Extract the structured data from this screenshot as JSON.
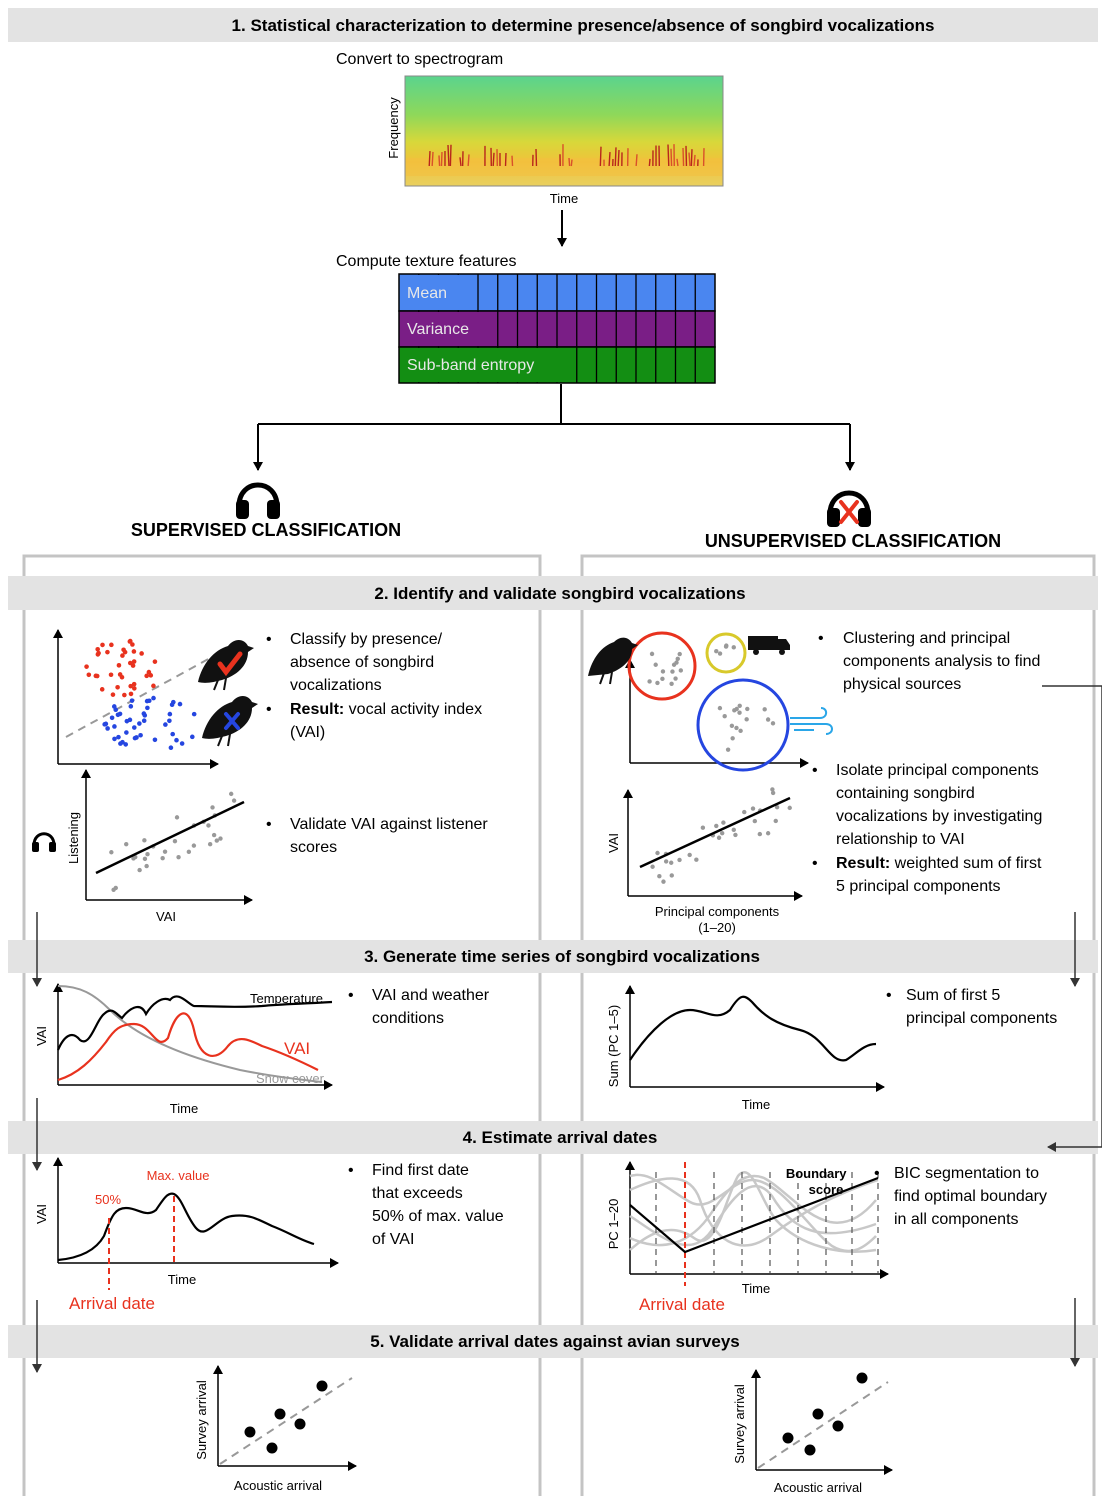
{
  "bands": {
    "b1": "1. Statistical characterization to determine presence/absence of songbird vocalizations",
    "b2": "2. Identify and validate songbird vocalizations",
    "b3": "3. Generate time series of songbird vocalizations",
    "b4": "4. Estimate arrival dates",
    "b5": "5. Validate arrival dates against avian surveys"
  },
  "step1": {
    "spectrogram_title": "Convert to spectrogram",
    "frequency_label": "Frequency",
    "time_label": "Time",
    "texture_title": "Compute texture features",
    "features": [
      "Mean",
      "Variance",
      "Sub-band entropy"
    ],
    "feature_colors": [
      "#4a86f0",
      "#7a1e86",
      "#138e13"
    ]
  },
  "classification": {
    "supervised": "SUPERVISED CLASSIFICATION",
    "unsupervised": "UNSUPERVISED CLASSIFICATION"
  },
  "step2": {
    "sup_bullets": [
      "Classify by presence/ absence of songbird vocalizations",
      "vocal activity index (VAI)"
    ],
    "result_prefix": "Result:",
    "validate_bullet": "Validate VAI against listener scores",
    "listening_label": "Listening",
    "vai_label": "VAI",
    "unsup_bullet1": "Clustering and principal components analysis to find physical sources",
    "unsup_bullet2": "Isolate principal components containing songbird vocalizations by investigating relationship to VAI",
    "unsup_result": "weighted sum of first 5 principal components",
    "pc_label": "Principal components",
    "pc_range": "(1–20)",
    "unsup_vai_label": "VAI"
  },
  "step3": {
    "vai_label": "VAI",
    "time_label": "Time",
    "temperature": "Temperature",
    "vai_series": "VAI",
    "snow": "Snow cover",
    "sup_bullet": "VAI and weather conditions",
    "sum_label": "Sum (PC 1–5)",
    "unsup_time": "Time",
    "unsup_bullet": "Sum of first 5 principal components"
  },
  "step4": {
    "vai_label": "VAI",
    "max_value": "Max. value",
    "fifty": "50%",
    "time_label": "Time",
    "arrival": "Arrival date",
    "sup_bullet": "Find first date that exceeds 50% of max. value of VAI",
    "pc_label": "PC 1–20",
    "boundary_1": "Boundary",
    "boundary_2": "score",
    "unsup_time": "Time",
    "unsup_arrival": "Arrival date",
    "unsup_bullet": "BIC segmentation to find optimal boundary in all components"
  },
  "step5": {
    "survey_label": "Survey arrival",
    "acoustic_label": "Acoustic arrival"
  },
  "colors": {
    "band": "#e3e3e3",
    "panel_border": "#c4c4c4",
    "red": "#e8321e",
    "blue": "#2546e0",
    "grey_dot": "#999999",
    "yellow": "#d8c92b"
  }
}
